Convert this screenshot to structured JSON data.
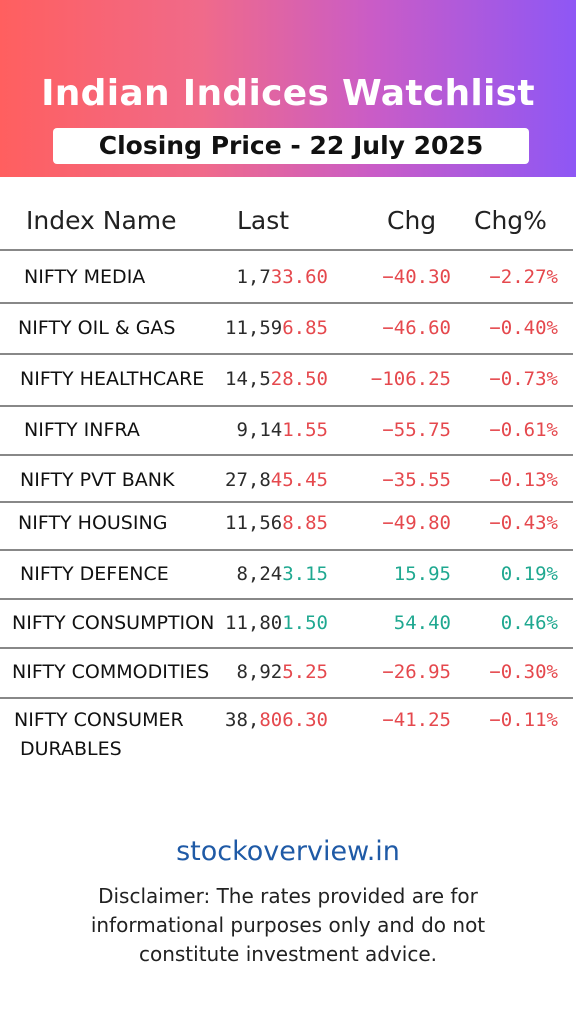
{
  "header": {
    "title": "Indian Indices Watchlist",
    "subtitle": "Closing Price - 22 July 2025"
  },
  "table": {
    "columns": [
      "Index Name",
      "Last",
      "Chg",
      "Chg%"
    ],
    "rows": [
      {
        "name": "NIFTY MEDIA",
        "last_a": "1,7",
        "last_b": "33.60",
        "chg": "−40.30",
        "pct": "−2.27%",
        "dir": "down"
      },
      {
        "name": "NIFTY OIL & GAS",
        "last_a": "11,59",
        "last_b": "6.85",
        "chg": "−46.60",
        "pct": "−0.40%",
        "dir": "down"
      },
      {
        "name": "NIFTY HEALTHCARE",
        "last_a": "14,5",
        "last_b": "28.50",
        "chg": "−106.25",
        "pct": "−0.73%",
        "dir": "down"
      },
      {
        "name": "NIFTY INFRA",
        "last_a": "9,14",
        "last_b": "1.55",
        "chg": "−55.75",
        "pct": "−0.61%",
        "dir": "down"
      },
      {
        "name": "NIFTY PVT BANK",
        "last_a": "27,8",
        "last_b": "45.45",
        "chg": "−35.55",
        "pct": "−0.13%",
        "dir": "down"
      },
      {
        "name": "NIFTY HOUSING",
        "last_a": "11,56",
        "last_b": "8.85",
        "chg": "−49.80",
        "pct": "−0.43%",
        "dir": "down"
      },
      {
        "name": "NIFTY DEFENCE",
        "last_a": "8,24",
        "last_b": "3.15",
        "chg": "15.95",
        "pct": "0.19%",
        "dir": "up"
      },
      {
        "name": "NIFTY CONSUMPTION",
        "last_a": "11,80",
        "last_b": "1.50",
        "chg": "54.40",
        "pct": "0.46%",
        "dir": "up"
      },
      {
        "name": "NIFTY COMMODITIES",
        "last_a": "8,92",
        "last_b": "5.25",
        "chg": "−26.95",
        "pct": "−0.30%",
        "dir": "down"
      },
      {
        "name": "NIFTY CONSUMER",
        "name2": "DURABLES",
        "last_a": "38,",
        "last_b": "806.30",
        "chg": "−41.25",
        "pct": "−0.11%",
        "dir": "down"
      }
    ]
  },
  "footer": {
    "site": "stockoverview.in",
    "disclaimer": "Disclaimer: The rates provided are for informational purposes only and do not constitute investment advice."
  },
  "colors": {
    "up": "#1fa890",
    "down": "#e5484d",
    "neutral": "#2b2b2b"
  }
}
